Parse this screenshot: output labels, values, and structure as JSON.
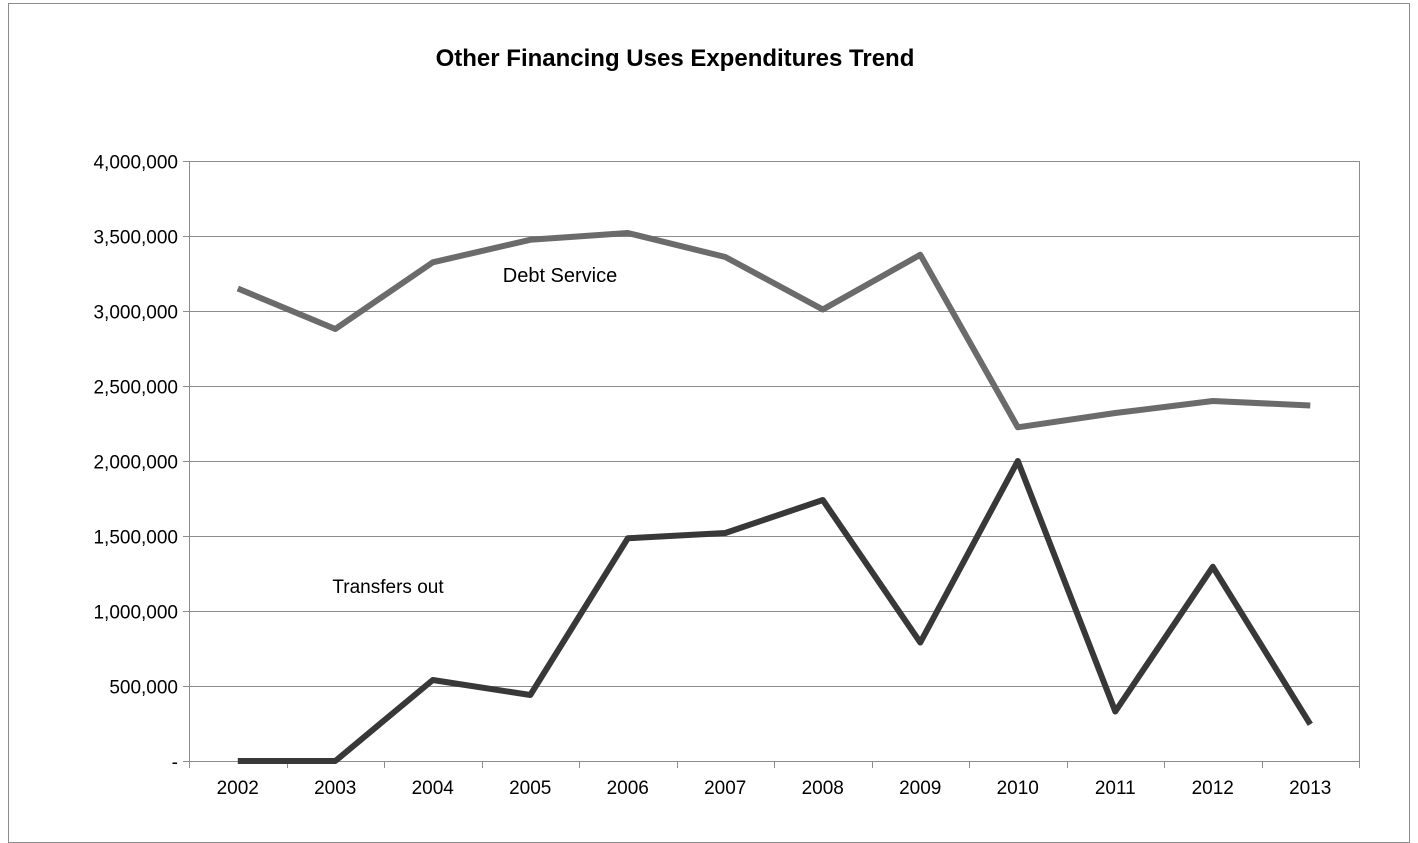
{
  "chart_data": {
    "type": "line",
    "title": "Other Financing Uses Expenditures Trend",
    "xlabel": "",
    "ylabel": "",
    "categories": [
      "2002",
      "2003",
      "2004",
      "2005",
      "2006",
      "2007",
      "2008",
      "2009",
      "2010",
      "2011",
      "2012",
      "2013"
    ],
    "ylim": [
      0,
      4000000
    ],
    "yticks": [
      0,
      500000,
      1000000,
      1500000,
      2000000,
      2500000,
      3000000,
      3500000,
      4000000
    ],
    "ytick_labels": [
      "-",
      "500,000",
      "1,000,000",
      "1,500,000",
      "2,000,000",
      "2,500,000",
      "3,000,000",
      "3,500,000",
      "4,000,000"
    ],
    "grid": true,
    "legend": "none",
    "series": [
      {
        "name": "Debt Service",
        "color": "#6b6b6b",
        "values": [
          3150000,
          2880000,
          3325000,
          3475000,
          3520000,
          3360000,
          3010000,
          3375000,
          2225000,
          2320000,
          2400000,
          2370000
        ]
      },
      {
        "name": "Transfers out",
        "color": "#383838",
        "values": [
          0,
          0,
          540000,
          440000,
          1485000,
          1520000,
          1740000,
          790000,
          2000000,
          330000,
          1295000,
          245000
        ]
      }
    ]
  },
  "colors": {
    "gridline": "#8c8c8c",
    "axis": "#8c8c8c",
    "frame": "#8c8c8c"
  }
}
